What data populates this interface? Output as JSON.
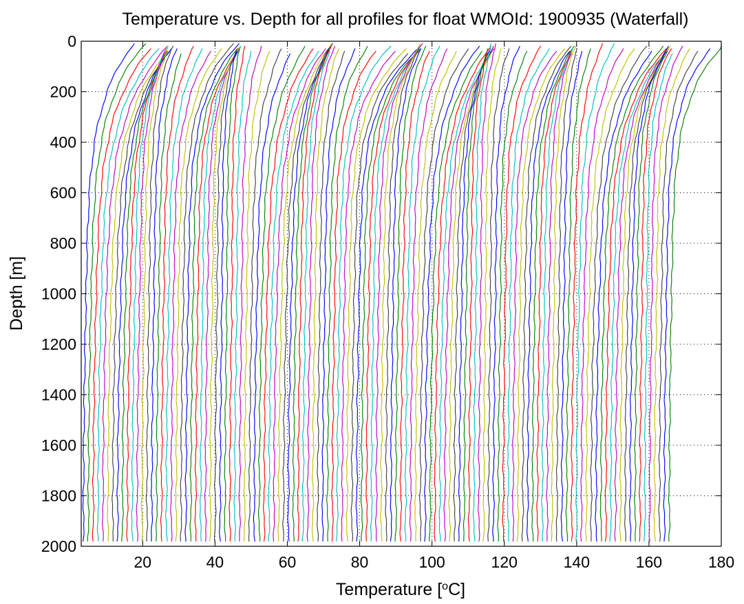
{
  "chart_data": {
    "type": "line",
    "title": "Temperature vs. Depth for all profiles for float WMOId: 1900935 (Waterfall)",
    "xlabel_prefix": "Temperature [",
    "xlabel_sup": "o",
    "xlabel_suffix": "C]",
    "ylabel": "Depth [m]",
    "xlim": [
      3,
      180
    ],
    "ylim": [
      2000,
      0
    ],
    "y_reversed": true,
    "grid": true,
    "grid_style": "dotted",
    "legend": "none",
    "x_ticks": [
      20,
      40,
      60,
      80,
      100,
      120,
      140,
      160,
      180
    ],
    "y_ticks": [
      0,
      200,
      400,
      600,
      800,
      1000,
      1200,
      1400,
      1600,
      1800,
      2000
    ],
    "colors": [
      "#0000ff",
      "#008000",
      "#ff0000",
      "#00bfbf",
      "#bf00bf",
      "#bfbf00",
      "#404040"
    ],
    "profile_count": 121,
    "profile_spacing": 1.35,
    "first_profile_deep_temperature": 3.6,
    "profile_depth_max": 1980,
    "profile_top_offsets": [
      2,
      10,
      30,
      25,
      18,
      40,
      12,
      22,
      35,
      28,
      15,
      38,
      20,
      32,
      26,
      44,
      16,
      24,
      36,
      30
    ]
  }
}
